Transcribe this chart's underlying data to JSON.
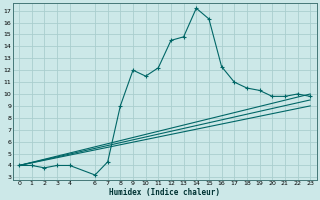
{
  "title": "",
  "xlabel": "Humidex (Indice chaleur)",
  "bg_color": "#cce8e8",
  "grid_color": "#aacece",
  "line_color": "#006666",
  "xlim": [
    -0.5,
    23.5
  ],
  "ylim": [
    2.8,
    17.6
  ],
  "yticks": [
    3,
    4,
    5,
    6,
    7,
    8,
    9,
    10,
    11,
    12,
    13,
    14,
    15,
    16,
    17
  ],
  "xticks": [
    0,
    1,
    2,
    3,
    4,
    6,
    7,
    8,
    9,
    10,
    11,
    12,
    13,
    14,
    15,
    16,
    17,
    18,
    19,
    20,
    21,
    22,
    23
  ],
  "xtick_labels": [
    "0",
    "1",
    "2",
    "3",
    "4",
    "6",
    "7",
    "8",
    "9",
    "10",
    "11",
    "12",
    "13",
    "14",
    "15",
    "16",
    "17",
    "18",
    "19",
    "20",
    "21",
    "22",
    "23"
  ],
  "main_series": [
    [
      0,
      4.0
    ],
    [
      1,
      4.0
    ],
    [
      2,
      3.8
    ],
    [
      3,
      4.0
    ],
    [
      4,
      4.0
    ],
    [
      6,
      3.2
    ],
    [
      7,
      4.3
    ],
    [
      8,
      9.0
    ],
    [
      9,
      12.0
    ],
    [
      10,
      11.5
    ],
    [
      11,
      12.2
    ],
    [
      12,
      14.5
    ],
    [
      13,
      14.8
    ],
    [
      14,
      17.2
    ],
    [
      15,
      16.3
    ],
    [
      16,
      12.3
    ],
    [
      17,
      11.0
    ],
    [
      18,
      10.5
    ],
    [
      19,
      10.3
    ],
    [
      20,
      9.8
    ],
    [
      21,
      9.8
    ],
    [
      22,
      10.0
    ],
    [
      23,
      9.8
    ]
  ],
  "linear_lines": [
    {
      "x_start": 0,
      "y_start": 4.0,
      "x_end": 23,
      "y_end": 10.0
    },
    {
      "x_start": 0,
      "y_start": 4.0,
      "x_end": 23,
      "y_end": 9.5
    },
    {
      "x_start": 0,
      "y_start": 4.0,
      "x_end": 23,
      "y_end": 9.0
    }
  ]
}
